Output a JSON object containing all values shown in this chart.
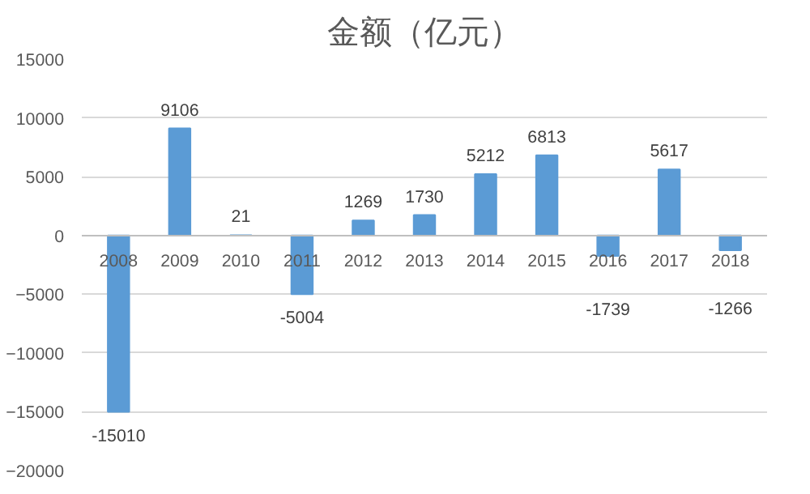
{
  "chart_data": {
    "type": "bar",
    "title": "金额（亿元）",
    "categories": [
      "2008",
      "2009",
      "2010",
      "2011",
      "2012",
      "2013",
      "2014",
      "2015",
      "2016",
      "2017",
      "2018"
    ],
    "values": [
      -15010,
      9106,
      21,
      -5004,
      1269,
      1730,
      5212,
      6813,
      -1739,
      5617,
      -1266
    ],
    "color": "#5b9bd5",
    "ylim": [
      -20000,
      15000
    ],
    "yticks": [
      -20000,
      -15000,
      -10000,
      -5000,
      0,
      5000,
      10000,
      15000
    ],
    "grid": "y",
    "data_labels": true
  }
}
